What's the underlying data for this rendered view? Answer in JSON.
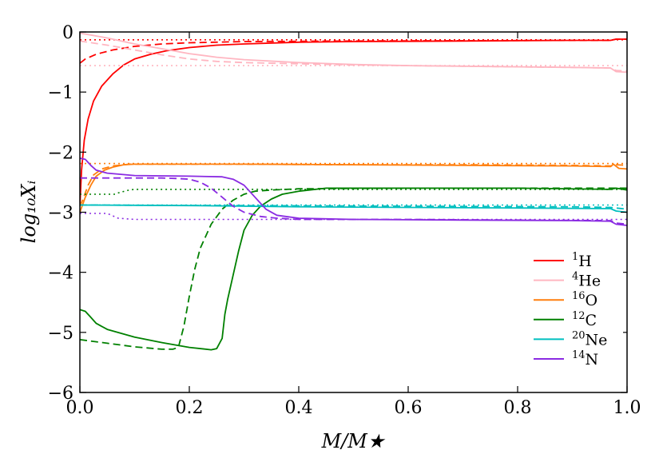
{
  "chart_data": {
    "type": "line",
    "title": "",
    "xlabel": "M/M★",
    "ylabel": "log₁₀Xᵢ",
    "xlim": [
      0.0,
      1.0
    ],
    "ylim": [
      -6,
      0
    ],
    "x_ticks": [
      "0.0",
      "0.2",
      "0.4",
      "0.6",
      "0.8",
      "1.0"
    ],
    "y_ticks": [
      "0",
      "−1",
      "−2",
      "−3",
      "−4",
      "−5",
      "−6"
    ],
    "x_tick_values": [
      0.0,
      0.2,
      0.4,
      0.6,
      0.8,
      1.0
    ],
    "y_tick_values": [
      0,
      -1,
      -2,
      -3,
      -4,
      -5,
      -6
    ],
    "grid": false,
    "legend_position": "lower-right",
    "series": [
      {
        "name": "1H",
        "mass_number": "1",
        "symbol": "H",
        "color": "#ff0000",
        "solid": [
          [
            0.0,
            -2.9
          ],
          [
            0.003,
            -2.3
          ],
          [
            0.008,
            -1.8
          ],
          [
            0.015,
            -1.45
          ],
          [
            0.025,
            -1.15
          ],
          [
            0.04,
            -0.9
          ],
          [
            0.06,
            -0.7
          ],
          [
            0.08,
            -0.55
          ],
          [
            0.1,
            -0.45
          ],
          [
            0.13,
            -0.37
          ],
          [
            0.16,
            -0.31
          ],
          [
            0.2,
            -0.26
          ],
          [
            0.25,
            -0.22
          ],
          [
            0.3,
            -0.2
          ],
          [
            0.4,
            -0.17
          ],
          [
            0.5,
            -0.16
          ],
          [
            0.6,
            -0.155
          ],
          [
            0.7,
            -0.15
          ],
          [
            0.8,
            -0.145
          ],
          [
            0.9,
            -0.14
          ],
          [
            0.97,
            -0.14
          ],
          [
            0.98,
            -0.12
          ],
          [
            1.0,
            -0.12
          ]
        ],
        "dashed": [
          [
            0.0,
            -0.52
          ],
          [
            0.01,
            -0.45
          ],
          [
            0.03,
            -0.37
          ],
          [
            0.06,
            -0.3
          ],
          [
            0.1,
            -0.24
          ],
          [
            0.15,
            -0.2
          ],
          [
            0.2,
            -0.18
          ],
          [
            0.3,
            -0.16
          ],
          [
            0.5,
            -0.15
          ],
          [
            0.7,
            -0.145
          ],
          [
            0.9,
            -0.14
          ],
          [
            0.97,
            -0.14
          ],
          [
            0.98,
            -0.12
          ],
          [
            1.0,
            -0.12
          ]
        ],
        "dotted": [
          [
            0.0,
            -0.13
          ],
          [
            1.0,
            -0.13
          ]
        ]
      },
      {
        "name": "4He",
        "mass_number": "4",
        "symbol": "He",
        "color": "#ffb6c1",
        "solid": [
          [
            0.0,
            -0.02
          ],
          [
            0.02,
            -0.05
          ],
          [
            0.05,
            -0.1
          ],
          [
            0.1,
            -0.2
          ],
          [
            0.15,
            -0.28
          ],
          [
            0.2,
            -0.36
          ],
          [
            0.25,
            -0.42
          ],
          [
            0.3,
            -0.46
          ],
          [
            0.4,
            -0.51
          ],
          [
            0.5,
            -0.54
          ],
          [
            0.6,
            -0.56
          ],
          [
            0.7,
            -0.57
          ],
          [
            0.8,
            -0.58
          ],
          [
            0.9,
            -0.59
          ],
          [
            0.97,
            -0.6
          ],
          [
            0.98,
            -0.66
          ],
          [
            1.0,
            -0.67
          ]
        ],
        "dashed": [
          [
            0.0,
            -0.15
          ],
          [
            0.05,
            -0.22
          ],
          [
            0.1,
            -0.3
          ],
          [
            0.15,
            -0.38
          ],
          [
            0.2,
            -0.45
          ],
          [
            0.25,
            -0.49
          ],
          [
            0.3,
            -0.51
          ],
          [
            0.4,
            -0.53
          ],
          [
            0.5,
            -0.55
          ],
          [
            0.6,
            -0.56
          ],
          [
            0.7,
            -0.57
          ],
          [
            0.8,
            -0.58
          ],
          [
            0.9,
            -0.59
          ],
          [
            0.97,
            -0.6
          ],
          [
            0.98,
            -0.64
          ],
          [
            1.0,
            -0.65
          ]
        ],
        "dotted": [
          [
            0.0,
            -0.56
          ],
          [
            1.0,
            -0.56
          ]
        ]
      },
      {
        "name": "16O",
        "mass_number": "16",
        "symbol": "O",
        "color": "#ff7f0e",
        "solid": [
          [
            0.0,
            -3.0
          ],
          [
            0.01,
            -2.75
          ],
          [
            0.02,
            -2.55
          ],
          [
            0.03,
            -2.4
          ],
          [
            0.045,
            -2.3
          ],
          [
            0.06,
            -2.25
          ],
          [
            0.08,
            -2.21
          ],
          [
            0.1,
            -2.2
          ],
          [
            0.3,
            -2.2
          ],
          [
            0.5,
            -2.21
          ],
          [
            0.7,
            -2.22
          ],
          [
            0.9,
            -2.23
          ],
          [
            0.97,
            -2.24
          ],
          [
            0.975,
            -2.2
          ],
          [
            0.985,
            -2.27
          ],
          [
            1.0,
            -2.28
          ]
        ],
        "dashed": [
          [
            0.0,
            -2.9
          ],
          [
            0.005,
            -2.8
          ],
          [
            0.015,
            -2.55
          ],
          [
            0.025,
            -2.38
          ],
          [
            0.04,
            -2.28
          ],
          [
            0.06,
            -2.23
          ],
          [
            0.09,
            -2.2
          ],
          [
            0.3,
            -2.2
          ],
          [
            0.5,
            -2.21
          ],
          [
            0.7,
            -2.21
          ],
          [
            0.9,
            -2.22
          ],
          [
            0.97,
            -2.23
          ],
          [
            0.98,
            -2.21
          ],
          [
            1.0,
            -2.22
          ]
        ],
        "dotted": [
          [
            0.0,
            -2.19
          ],
          [
            1.0,
            -2.19
          ]
        ]
      },
      {
        "name": "12C",
        "mass_number": "12",
        "symbol": "C",
        "color": "#008000",
        "solid": [
          [
            0.0,
            -4.62
          ],
          [
            0.01,
            -4.65
          ],
          [
            0.02,
            -4.75
          ],
          [
            0.03,
            -4.85
          ],
          [
            0.05,
            -4.95
          ],
          [
            0.1,
            -5.08
          ],
          [
            0.15,
            -5.17
          ],
          [
            0.2,
            -5.25
          ],
          [
            0.24,
            -5.29
          ],
          [
            0.25,
            -5.27
          ],
          [
            0.26,
            -5.1
          ],
          [
            0.265,
            -4.7
          ],
          [
            0.27,
            -4.45
          ],
          [
            0.28,
            -4.05
          ],
          [
            0.29,
            -3.65
          ],
          [
            0.3,
            -3.3
          ],
          [
            0.315,
            -3.05
          ],
          [
            0.33,
            -2.9
          ],
          [
            0.35,
            -2.78
          ],
          [
            0.37,
            -2.7
          ],
          [
            0.4,
            -2.65
          ],
          [
            0.45,
            -2.6
          ],
          [
            0.6,
            -2.6
          ],
          [
            0.8,
            -2.6
          ],
          [
            0.97,
            -2.62
          ],
          [
            0.98,
            -2.6
          ],
          [
            1.0,
            -2.63
          ]
        ],
        "dashed": [
          [
            0.0,
            -5.12
          ],
          [
            0.05,
            -5.18
          ],
          [
            0.1,
            -5.24
          ],
          [
            0.15,
            -5.28
          ],
          [
            0.17,
            -5.28
          ],
          [
            0.18,
            -5.25
          ],
          [
            0.19,
            -4.9
          ],
          [
            0.2,
            -4.4
          ],
          [
            0.21,
            -3.95
          ],
          [
            0.22,
            -3.6
          ],
          [
            0.24,
            -3.2
          ],
          [
            0.26,
            -2.95
          ],
          [
            0.28,
            -2.8
          ],
          [
            0.3,
            -2.7
          ],
          [
            0.32,
            -2.65
          ],
          [
            0.35,
            -2.63
          ],
          [
            0.4,
            -2.61
          ],
          [
            0.6,
            -2.6
          ],
          [
            0.8,
            -2.6
          ],
          [
            0.97,
            -2.6
          ],
          [
            1.0,
            -2.6
          ]
        ],
        "dotted": [
          [
            0.0,
            -2.7
          ],
          [
            0.065,
            -2.7
          ],
          [
            0.07,
            -2.68
          ],
          [
            0.09,
            -2.63
          ],
          [
            0.1,
            -2.62
          ],
          [
            1.0,
            -2.62
          ]
        ]
      },
      {
        "name": "20Ne",
        "mass_number": "20",
        "symbol": "Ne",
        "color": "#00bfbf",
        "solid": [
          [
            0.0,
            -2.88
          ],
          [
            0.2,
            -2.89
          ],
          [
            0.4,
            -2.91
          ],
          [
            0.6,
            -2.92
          ],
          [
            0.8,
            -2.93
          ],
          [
            0.97,
            -2.94
          ],
          [
            0.98,
            -2.98
          ],
          [
            1.0,
            -3.0
          ]
        ],
        "dashed": [
          [
            0.0,
            -2.88
          ],
          [
            0.3,
            -2.89
          ],
          [
            0.6,
            -2.9
          ],
          [
            0.9,
            -2.91
          ],
          [
            0.97,
            -2.92
          ],
          [
            1.0,
            -2.95
          ]
        ],
        "dotted": [
          [
            0.0,
            -2.88
          ],
          [
            1.0,
            -2.88
          ]
        ]
      },
      {
        "name": "14N",
        "mass_number": "14",
        "symbol": "N",
        "color": "#8a2be2",
        "solid": [
          [
            0.0,
            -2.1
          ],
          [
            0.01,
            -2.12
          ],
          [
            0.02,
            -2.22
          ],
          [
            0.03,
            -2.3
          ],
          [
            0.05,
            -2.35
          ],
          [
            0.1,
            -2.39
          ],
          [
            0.2,
            -2.4
          ],
          [
            0.26,
            -2.41
          ],
          [
            0.28,
            -2.45
          ],
          [
            0.3,
            -2.55
          ],
          [
            0.32,
            -2.75
          ],
          [
            0.34,
            -2.95
          ],
          [
            0.36,
            -3.05
          ],
          [
            0.4,
            -3.1
          ],
          [
            0.5,
            -3.12
          ],
          [
            0.7,
            -3.13
          ],
          [
            0.9,
            -3.14
          ],
          [
            0.97,
            -3.15
          ],
          [
            0.98,
            -3.2
          ],
          [
            1.0,
            -3.22
          ]
        ],
        "dashed": [
          [
            0.0,
            -2.43
          ],
          [
            0.15,
            -2.43
          ],
          [
            0.18,
            -2.44
          ],
          [
            0.2,
            -2.45
          ],
          [
            0.22,
            -2.5
          ],
          [
            0.24,
            -2.6
          ],
          [
            0.26,
            -2.75
          ],
          [
            0.28,
            -2.9
          ],
          [
            0.3,
            -3.0
          ],
          [
            0.33,
            -3.07
          ],
          [
            0.36,
            -3.1
          ],
          [
            0.4,
            -3.12
          ],
          [
            0.6,
            -3.12
          ],
          [
            0.8,
            -3.13
          ],
          [
            0.97,
            -3.14
          ],
          [
            0.98,
            -3.18
          ],
          [
            1.0,
            -3.2
          ]
        ],
        "dotted": [
          [
            0.0,
            -3.02
          ],
          [
            0.05,
            -3.02
          ],
          [
            0.06,
            -3.06
          ],
          [
            0.07,
            -3.1
          ],
          [
            0.1,
            -3.12
          ],
          [
            1.0,
            -3.12
          ]
        ]
      }
    ]
  }
}
